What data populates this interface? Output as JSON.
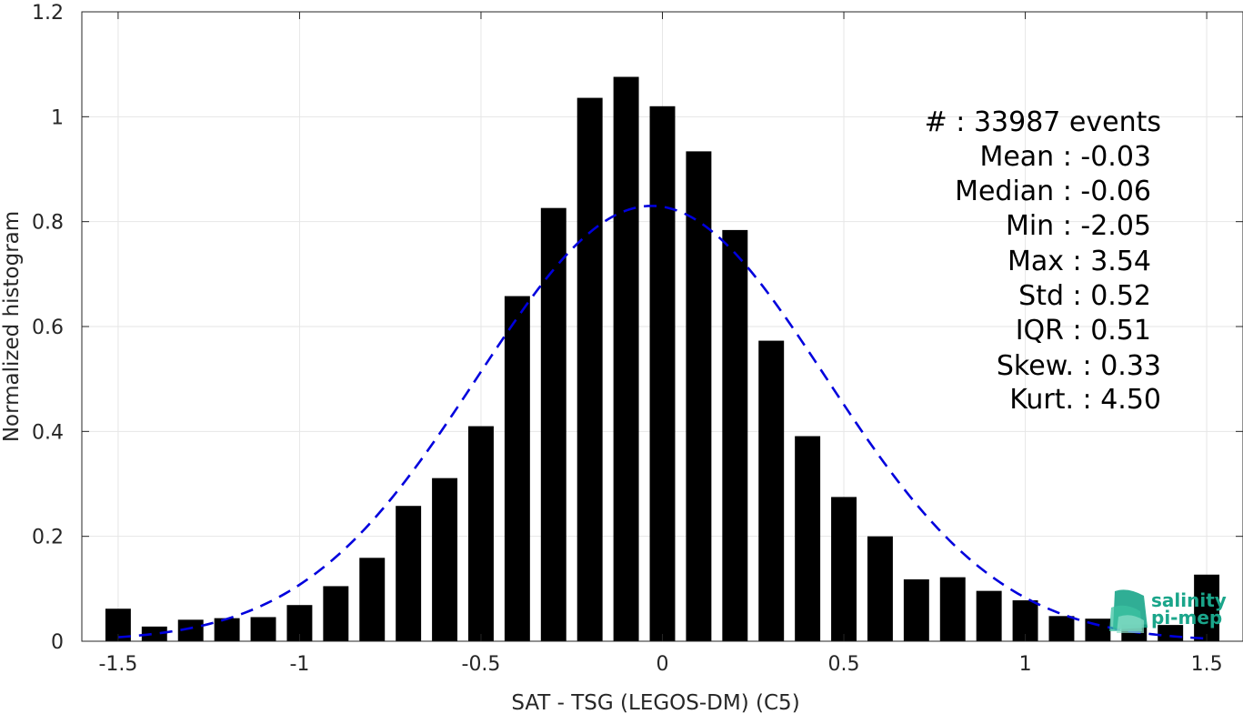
{
  "chart_data": {
    "type": "bar",
    "xlabel": "SAT - TSG (LEGOS-DM) (C5)",
    "ylabel": "Normalized histogram",
    "xlim": [
      -1.6,
      1.6
    ],
    "ylim": [
      0,
      1.2
    ],
    "grid": true,
    "x_ticks": [
      "-1.5",
      "-1",
      "-0.5",
      "0",
      "0.5",
      "1",
      "1.5"
    ],
    "y_ticks": [
      "0",
      "0.2",
      "0.4",
      "0.6",
      "0.8",
      "1",
      "1.2"
    ],
    "bin_width": 0.1,
    "bar_width_fraction": 0.7,
    "bar_color": "#000000",
    "x": [
      -1.5,
      -1.4,
      -1.3,
      -1.2,
      -1.1,
      -1.0,
      -0.9,
      -0.8,
      -0.7,
      -0.6,
      -0.5,
      -0.4,
      -0.3,
      -0.2,
      -0.1,
      0.0,
      0.1,
      0.2,
      0.3,
      0.4,
      0.5,
      0.6,
      0.7,
      0.8,
      0.9,
      1.0,
      1.1,
      1.2,
      1.3,
      1.4,
      1.5
    ],
    "values": [
      0.062,
      0.028,
      0.041,
      0.044,
      0.046,
      0.069,
      0.105,
      0.159,
      0.258,
      0.311,
      0.41,
      0.658,
      0.826,
      1.036,
      1.076,
      1.02,
      0.934,
      0.784,
      0.573,
      0.391,
      0.275,
      0.2,
      0.118,
      0.122,
      0.096,
      0.078,
      0.048,
      0.043,
      0.032,
      0.031,
      0.127
    ],
    "fit_curve": {
      "type": "gaussian",
      "mean": -0.03,
      "std": 0.48,
      "peak": 0.83,
      "color": "#0000dd",
      "style": "dashed",
      "x_range": [
        -1.5,
        1.5
      ]
    },
    "stats": [
      "#  : 33987 events",
      "Mean : -0.03",
      "Median : -0.06",
      "Min : -2.05",
      "Max : 3.54",
      "Std : 0.52",
      "IQR : 0.51",
      "Skew. : 0.33",
      "Kurt. : 4.50"
    ]
  },
  "logo": {
    "line1": "salinity",
    "line2": "pi-mep",
    "color": "#1aa58a"
  }
}
